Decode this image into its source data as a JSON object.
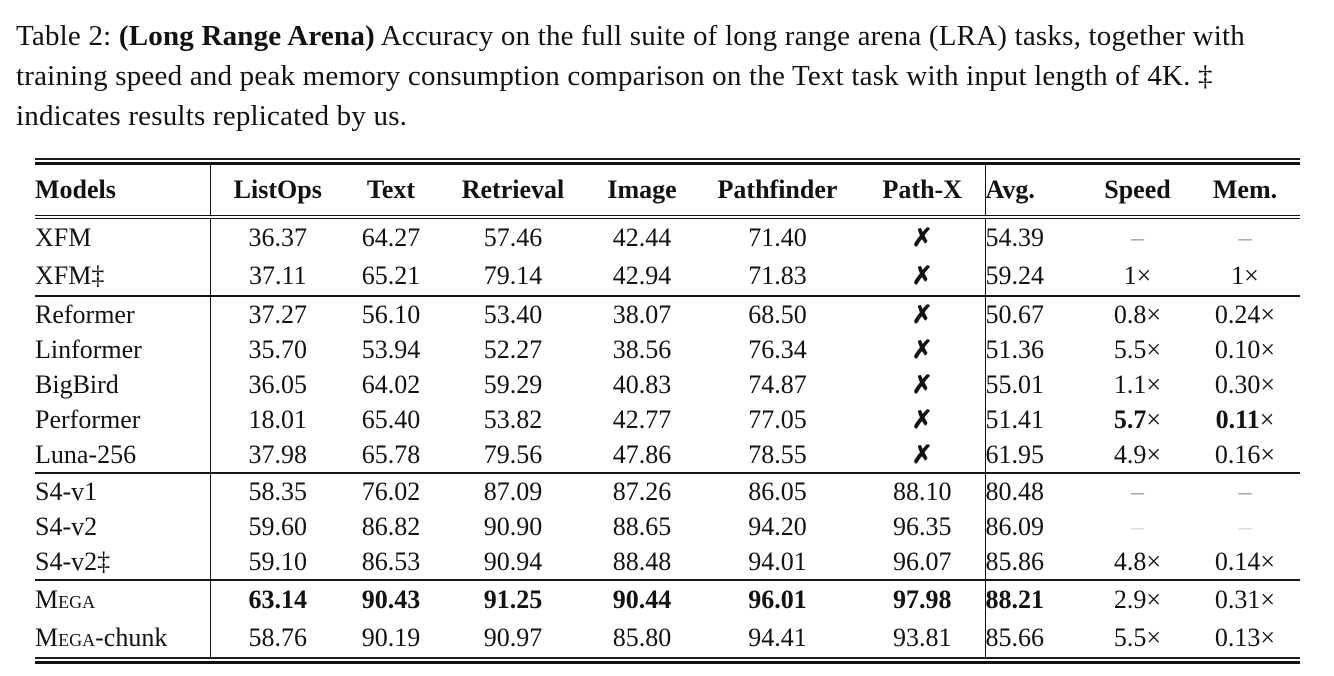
{
  "caption": {
    "prefix": "Table 2: ",
    "bold": "(Long Range Arena)",
    "rest": " Accuracy on the full suite of long range arena (LRA) tasks, together with training speed and peak memory consumption comparison on the Text task with input length of 4K. ‡ indicates results replicated by us."
  },
  "colors": {
    "rule": "#111111",
    "dash_gray": "#9b9b9b",
    "dash_light": "#d9d9d9"
  },
  "table": {
    "columns": [
      "Models",
      "ListOps",
      "Text",
      "Retrieval",
      "Image",
      "Pathfinder",
      "Path-X",
      "Avg.",
      "Speed",
      "Mem."
    ],
    "groups": [
      {
        "rows": [
          {
            "model": {
              "t": "XFM"
            },
            "cells": [
              {
                "t": "36.37"
              },
              {
                "t": "64.27"
              },
              {
                "t": "57.46"
              },
              {
                "t": "42.44"
              },
              {
                "t": "71.40"
              },
              {
                "t": "✗",
                "k": "cross"
              },
              {
                "t": "54.39"
              },
              {
                "t": "–",
                "k": "dash"
              },
              {
                "t": "–",
                "k": "dash"
              }
            ]
          },
          {
            "model": {
              "t": "XFM‡"
            },
            "cells": [
              {
                "t": "37.11"
              },
              {
                "t": "65.21"
              },
              {
                "t": "79.14"
              },
              {
                "t": "42.94"
              },
              {
                "t": "71.83"
              },
              {
                "t": "✗",
                "k": "cross"
              },
              {
                "t": "59.24"
              },
              {
                "t": "1×"
              },
              {
                "t": "1×"
              }
            ]
          }
        ]
      },
      {
        "rows": [
          {
            "model": {
              "t": "Reformer"
            },
            "cells": [
              {
                "t": "37.27"
              },
              {
                "t": "56.10"
              },
              {
                "t": "53.40"
              },
              {
                "t": "38.07"
              },
              {
                "t": "68.50"
              },
              {
                "t": "✗",
                "k": "cross"
              },
              {
                "t": "50.67"
              },
              {
                "t": "0.8×"
              },
              {
                "t": "0.24×"
              }
            ]
          },
          {
            "model": {
              "t": "Linformer"
            },
            "cells": [
              {
                "t": "35.70"
              },
              {
                "t": "53.94"
              },
              {
                "t": "52.27"
              },
              {
                "t": "38.56"
              },
              {
                "t": "76.34"
              },
              {
                "t": "✗",
                "k": "cross"
              },
              {
                "t": "51.36"
              },
              {
                "t": "5.5×"
              },
              {
                "t": "0.10×"
              }
            ]
          },
          {
            "model": {
              "t": "BigBird"
            },
            "cells": [
              {
                "t": "36.05"
              },
              {
                "t": "64.02"
              },
              {
                "t": "59.29"
              },
              {
                "t": "40.83"
              },
              {
                "t": "74.87"
              },
              {
                "t": "✗",
                "k": "cross"
              },
              {
                "t": "55.01"
              },
              {
                "t": "1.1×"
              },
              {
                "t": "0.30×"
              }
            ]
          },
          {
            "model": {
              "t": "Performer"
            },
            "cells": [
              {
                "t": "18.01"
              },
              {
                "t": "65.40"
              },
              {
                "t": "53.82"
              },
              {
                "t": "42.77"
              },
              {
                "t": "77.05"
              },
              {
                "t": "✗",
                "k": "cross"
              },
              {
                "t": "51.41"
              },
              {
                "pre": "5.7",
                "t": "×",
                "k": "boldpre"
              },
              {
                "pre": "0.11",
                "t": "×",
                "k": "boldpre"
              }
            ]
          },
          {
            "model": {
              "t": "Luna-256"
            },
            "cells": [
              {
                "t": "37.98"
              },
              {
                "t": "65.78"
              },
              {
                "t": "79.56"
              },
              {
                "t": "47.86"
              },
              {
                "t": "78.55"
              },
              {
                "t": "✗",
                "k": "cross"
              },
              {
                "t": "61.95"
              },
              {
                "t": "4.9×"
              },
              {
                "t": "0.16×"
              }
            ]
          }
        ]
      },
      {
        "rows": [
          {
            "model": {
              "t": "S4-v1"
            },
            "cells": [
              {
                "t": "58.35"
              },
              {
                "t": "76.02"
              },
              {
                "t": "87.09"
              },
              {
                "t": "87.26"
              },
              {
                "t": "86.05"
              },
              {
                "t": "88.10"
              },
              {
                "t": "80.48"
              },
              {
                "t": "–",
                "k": "dash"
              },
              {
                "t": "–",
                "k": "dash"
              }
            ]
          },
          {
            "model": {
              "t": "S4-v2"
            },
            "cells": [
              {
                "t": "59.60"
              },
              {
                "t": "86.82"
              },
              {
                "t": "90.90"
              },
              {
                "t": "88.65"
              },
              {
                "t": "94.20"
              },
              {
                "t": "96.35"
              },
              {
                "t": "86.09"
              },
              {
                "t": "–",
                "k": "dash2"
              },
              {
                "t": "–",
                "k": "dash2"
              }
            ]
          },
          {
            "model": {
              "t": "S4-v2‡"
            },
            "cells": [
              {
                "t": "59.10"
              },
              {
                "t": "86.53"
              },
              {
                "t": "90.94"
              },
              {
                "t": "88.48"
              },
              {
                "t": "94.01"
              },
              {
                "t": "96.07"
              },
              {
                "t": "85.86"
              },
              {
                "t": "4.8×"
              },
              {
                "t": "0.14×"
              }
            ]
          }
        ]
      },
      {
        "rows": [
          {
            "model": {
              "sc": "Mega"
            },
            "cells": [
              {
                "t": "63.14",
                "k": "bold"
              },
              {
                "t": "90.43",
                "k": "bold"
              },
              {
                "t": "91.25",
                "k": "bold"
              },
              {
                "t": "90.44",
                "k": "bold"
              },
              {
                "t": "96.01",
                "k": "bold"
              },
              {
                "t": "97.98",
                "k": "bold"
              },
              {
                "t": "88.21",
                "k": "bold"
              },
              {
                "t": "2.9×"
              },
              {
                "t": "0.31×"
              }
            ]
          },
          {
            "model": {
              "sc": "Mega",
              "t": "-chunk"
            },
            "cells": [
              {
                "t": "58.76"
              },
              {
                "t": "90.19"
              },
              {
                "t": "90.97"
              },
              {
                "t": "85.80"
              },
              {
                "t": "94.41"
              },
              {
                "t": "93.81"
              },
              {
                "t": "85.66"
              },
              {
                "t": "5.5×"
              },
              {
                "t": "0.13×"
              }
            ]
          }
        ]
      }
    ]
  }
}
